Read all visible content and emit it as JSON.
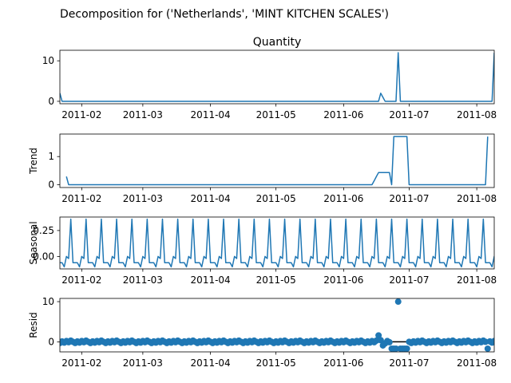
{
  "figure": {
    "suptitle": "Decomposition for ('Netherlands', 'MINT KITCHEN SCALES')"
  },
  "chart_data": [
    {
      "type": "line",
      "name": "observed",
      "title": "Quantity",
      "ylabel": "",
      "ylim": [
        -0.6,
        12.6
      ],
      "yticks": [
        "0",
        "10"
      ],
      "ytick_values": [
        0,
        10
      ],
      "xticks": [
        "2011-02",
        "2011-03",
        "2011-04",
        "2011-05",
        "2011-06",
        "2011-07",
        "2011-08"
      ],
      "xtick_dates": [
        "2011-02-01",
        "2011-03-01",
        "2011-04-01",
        "2011-05-01",
        "2011-06-01",
        "2011-07-01",
        "2011-08-01"
      ],
      "xlim": [
        "2011-01-22",
        "2011-08-09"
      ],
      "points": [
        [
          "2011-01-22",
          2
        ],
        [
          "2011-01-23",
          0
        ],
        [
          "2011-06-17",
          0
        ],
        [
          "2011-06-18",
          2
        ],
        [
          "2011-06-19",
          1
        ],
        [
          "2011-06-20",
          0
        ],
        [
          "2011-06-25",
          0
        ],
        [
          "2011-06-26",
          12
        ],
        [
          "2011-06-27",
          0
        ],
        [
          "2011-08-07",
          0
        ],
        [
          "2011-08-08",
          0
        ],
        [
          "2011-08-09",
          12
        ]
      ]
    },
    {
      "type": "line",
      "name": "trend",
      "title": "",
      "ylabel": "Trend",
      "ylim": [
        -0.1,
        1.8
      ],
      "yticks": [
        "0",
        "1"
      ],
      "ytick_values": [
        0,
        1
      ],
      "xticks": [
        "2011-02",
        "2011-03",
        "2011-04",
        "2011-05",
        "2011-06",
        "2011-07",
        "2011-08"
      ],
      "xlim": [
        "2011-01-22",
        "2011-08-09"
      ],
      "points": [
        [
          "2011-01-25",
          0.29
        ],
        [
          "2011-01-26",
          0
        ],
        [
          "2011-06-14",
          0
        ],
        [
          "2011-06-15",
          0.14
        ],
        [
          "2011-06-16",
          0.29
        ],
        [
          "2011-06-17",
          0.43
        ],
        [
          "2011-06-22",
          0.43
        ],
        [
          "2011-06-23",
          0
        ],
        [
          "2011-06-24",
          1.71
        ],
        [
          "2011-06-30",
          1.71
        ],
        [
          "2011-07-01",
          0
        ],
        [
          "2011-08-05",
          0
        ],
        [
          "2011-08-06",
          1.71
        ]
      ]
    },
    {
      "type": "line",
      "name": "seasonal",
      "title": "",
      "ylabel": "Seasonal",
      "ylim": [
        -0.12,
        0.38
      ],
      "yticks": [
        "0.25",
        "0.00"
      ],
      "ytick_values": [
        0.25,
        0.0
      ],
      "xticks": [
        "2011-02",
        "2011-03",
        "2011-04",
        "2011-05",
        "2011-06",
        "2011-07",
        "2011-08"
      ],
      "xlim": [
        "2011-01-22",
        "2011-08-09"
      ],
      "period_days": 7,
      "pattern": [
        -0.06,
        -0.06,
        -0.06,
        -0.1,
        0.0,
        -0.02,
        0.36
      ],
      "pattern_start": "2011-01-21"
    },
    {
      "type": "scatter",
      "name": "resid",
      "title": "",
      "ylabel": "Resid",
      "ylim": [
        -2.5,
        10.8
      ],
      "yticks": [
        "0",
        "10"
      ],
      "ytick_values": [
        0,
        10
      ],
      "xticks": [
        "2011-02",
        "2011-03",
        "2011-04",
        "2011-05",
        "2011-06",
        "2011-07",
        "2011-08"
      ],
      "xlim": [
        "2011-01-22",
        "2011-08-09"
      ],
      "baseline": 0,
      "points": [
        [
          "2011-06-17",
          1.6
        ],
        [
          "2011-06-18",
          0.4
        ],
        [
          "2011-06-19",
          -0.9
        ],
        [
          "2011-06-20",
          -0.4
        ],
        [
          "2011-06-23",
          -1.7
        ],
        [
          "2011-06-24",
          -1.7
        ],
        [
          "2011-06-25",
          -1.7
        ],
        [
          "2011-06-26",
          10.0
        ],
        [
          "2011-06-27",
          -1.7
        ],
        [
          "2011-06-28",
          -1.7
        ],
        [
          "2011-06-29",
          -1.7
        ],
        [
          "2011-06-30",
          -1.7
        ],
        [
          "2011-08-06",
          -1.7
        ]
      ],
      "default_resid_pattern": [
        -0.3,
        0.1,
        -0.2,
        0.2,
        -0.1,
        0.3,
        0.0
      ]
    }
  ]
}
